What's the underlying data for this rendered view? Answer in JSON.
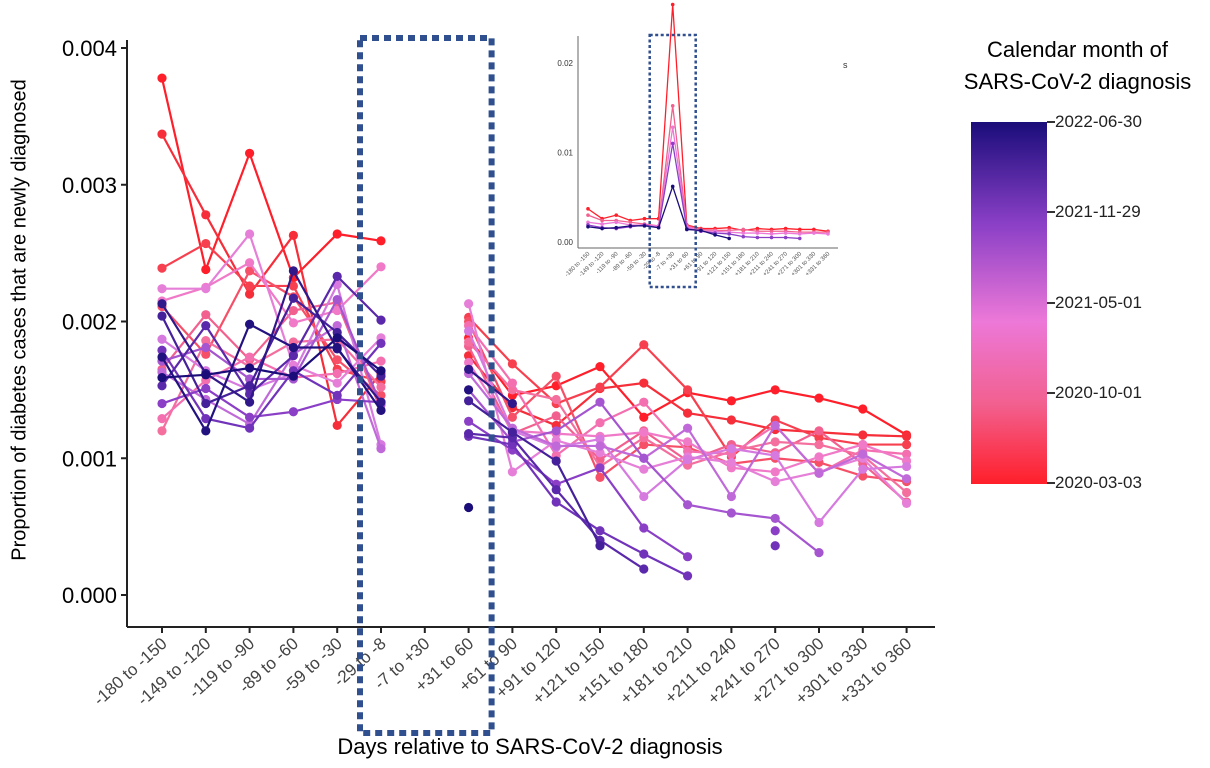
{
  "chart_data": {
    "type": "line",
    "title": "",
    "xlabel": "Days relative to SARS-CoV-2 diagnosis",
    "ylabel": "Proportion of diabetes cases that are newly diagnosed",
    "categories": [
      "-180 to -150",
      "-149 to -120",
      "-119 to -90",
      "-89 to -60",
      "-59 to -30",
      "-29 to -8",
      "-7 to +30",
      "+31 to 60",
      "+61 to 90",
      "+91 to 120",
      "+121 to 150",
      "+151 to 180",
      "+181 to 210",
      "+211 to 240",
      "+241 to 270",
      "+271 to 300",
      "+301 to 330",
      "+331 to 360"
    ],
    "ylim": [
      0,
      0.004
    ],
    "yticks": [
      "0.000",
      "0.001",
      "0.002",
      "0.003",
      "0.004"
    ],
    "highlighted_window": [
      "-29 to -8",
      "+31 to 60"
    ],
    "legend": {
      "title_line1": "Calendar month of",
      "title_line2": "SARS-CoV-2 diagnosis",
      "labels": [
        "2022-06-30",
        "2021-11-29",
        "2021-05-01",
        "2020-10-01",
        "2020-03-03"
      ],
      "colors": [
        "#1a0d7a",
        "#8a3fc6",
        "#ec78d8",
        "#f2608f",
        "#ff1f2a"
      ]
    },
    "series": [
      {
        "color": "#ff1f2a",
        "values": [
          0.00378,
          0.00238,
          0.00323,
          0.00232,
          0.00264,
          0.00259,
          null,
          0.00188,
          0.00146,
          0.00153,
          0.00167,
          0.0013,
          0.00148,
          0.00142,
          0.0015,
          0.00144,
          0.00136,
          0.00117
        ]
      },
      {
        "color": "#f52e3a",
        "values": [
          0.00337,
          0.00278,
          0.0022,
          0.00263,
          0.00124,
          0.00162,
          null,
          0.00175,
          0.00137,
          0.00124,
          0.00151,
          0.00155,
          0.00133,
          0.00128,
          0.00121,
          0.00119,
          0.00117,
          0.00116
        ]
      },
      {
        "color": "#f7404f",
        "values": [
          0.00239,
          0.00257,
          0.00226,
          0.00226,
          0.00165,
          0.00156,
          null,
          0.00203,
          0.00169,
          0.0014,
          0.00152,
          0.00183,
          0.0015,
          0.00101,
          0.00128,
          0.00115,
          0.0011,
          0.0011
        ]
      },
      {
        "color": "#f55068",
        "values": [
          0.00211,
          0.00176,
          0.00237,
          0.00218,
          0.00172,
          0.00146,
          null,
          0.002,
          0.0013,
          0.0016,
          0.00086,
          0.0011,
          0.00108,
          0.00096,
          0.001,
          0.00097,
          0.00087,
          0.00083
        ]
      },
      {
        "color": "#f2608f",
        "values": [
          0.00165,
          0.00205,
          0.00172,
          0.00208,
          0.00214,
          0.00135,
          null,
          0.00182,
          0.00118,
          0.00131,
          0.00099,
          0.0012,
          0.00098,
          0.0011,
          0.00104,
          0.0012,
          0.00096,
          0.00068
        ]
      },
      {
        "color": "#f46e9e",
        "values": [
          0.0012,
          0.00186,
          0.00167,
          0.00185,
          0.00187,
          0.00152,
          null,
          0.00185,
          0.0015,
          0.00143,
          0.00094,
          0.00115,
          0.00095,
          0.00105,
          0.00112,
          0.0011,
          0.00102,
          0.00075
        ]
      },
      {
        "color": "#f46fb0",
        "values": [
          0.00129,
          0.00157,
          0.00174,
          0.00159,
          0.00162,
          0.00171,
          null,
          0.00197,
          0.00155,
          0.00102,
          0.00126,
          0.00141,
          0.00105,
          0.00103,
          0.00124,
          0.00089,
          0.00106,
          0.00103
        ]
      },
      {
        "color": "#f07ac8",
        "values": [
          0.00215,
          0.00225,
          0.00243,
          0.00199,
          0.00208,
          0.0024,
          null,
          0.0017,
          0.0012,
          0.00118,
          0.00116,
          0.00119,
          0.00112,
          0.00093,
          0.0009,
          0.00101,
          0.0011,
          0.00098
        ]
      },
      {
        "color": "#e67fd8",
        "values": [
          0.00224,
          0.00224,
          0.00264,
          0.00168,
          0.00155,
          0.00188,
          null,
          0.00213,
          0.0009,
          0.00113,
          0.00104,
          0.00092,
          0.00101,
          0.00097,
          0.00083,
          0.0009,
          0.001,
          0.00067
        ]
      },
      {
        "color": "#d67ae0",
        "values": [
          0.00187,
          0.00164,
          0.0015,
          0.00162,
          0.00227,
          0.0011,
          null,
          0.00193,
          0.0012,
          0.00108,
          0.00114,
          0.00072,
          0.00099,
          0.00107,
          0.00102,
          0.00053,
          0.00092,
          0.00094
        ]
      },
      {
        "color": "#c06ad9",
        "values": [
          0.00163,
          0.00143,
          0.00125,
          0.00176,
          0.00197,
          0.00107,
          null,
          0.00162,
          0.00122,
          0.00109,
          0.00109,
          0.001,
          0.00122,
          0.00072,
          0.00124,
          0.00089,
          0.00103,
          0.00085
        ]
      },
      {
        "color": "#a455cf",
        "values": [
          0.00171,
          0.00181,
          0.00158,
          0.00158,
          0.00216,
          0.00139,
          null,
          0.0015,
          0.00112,
          0.0012,
          0.00141,
          0.001,
          0.00066,
          0.0006,
          0.00056,
          0.00031,
          null,
          null
        ]
      },
      {
        "color": "#8a3fc6",
        "values": [
          0.0014,
          0.00151,
          0.0013,
          0.00134,
          0.00143,
          0.00141,
          null,
          0.00127,
          0.00106,
          0.00081,
          0.00093,
          0.00049,
          0.00028,
          null,
          0.00047,
          null,
          null,
          null
        ]
      },
      {
        "color": "#7033ba",
        "values": [
          0.00179,
          0.00129,
          0.00122,
          0.00164,
          0.00146,
          0.00184,
          null,
          0.00116,
          0.0011,
          0.00068,
          0.00047,
          0.0003,
          0.00014,
          null,
          0.00036,
          null,
          null,
          null
        ]
      },
      {
        "color": "#5a28aa",
        "values": [
          0.00153,
          0.00197,
          0.00147,
          0.00175,
          0.00233,
          0.00201,
          null,
          0.00118,
          0.00115,
          0.00077,
          0.0004,
          0.00019,
          null,
          null,
          null,
          null,
          null,
          null
        ]
      },
      {
        "color": "#44209a",
        "values": [
          0.00204,
          0.0014,
          0.00153,
          0.00217,
          0.00192,
          0.0016,
          null,
          0.00142,
          0.00119,
          0.00098,
          0.00036,
          null,
          null,
          null,
          null,
          null,
          null,
          null
        ]
      },
      {
        "color": "#30188a",
        "values": [
          0.00213,
          0.00162,
          0.00141,
          0.00237,
          0.0018,
          0.00141,
          null,
          0.00165,
          0.0014,
          null,
          null,
          null,
          null,
          null,
          null,
          null,
          null,
          null
        ]
      },
      {
        "color": "#221280",
        "values": [
          0.00174,
          0.0012,
          0.00198,
          0.00181,
          0.00181,
          0.00135,
          null,
          0.0015,
          null,
          null,
          null,
          null,
          null,
          null,
          null,
          null,
          null,
          null
        ]
      },
      {
        "color": "#1a0d7a",
        "values": [
          0.00159,
          0.00161,
          0.00166,
          0.0016,
          0.00188,
          0.00164,
          null,
          0.00064,
          null,
          null,
          null,
          null,
          null,
          null,
          null,
          null,
          null,
          null
        ]
      }
    ],
    "inset": {
      "type": "line",
      "ylim": [
        0,
        0.027
      ],
      "yticks": [
        "0.00",
        "0.01",
        "0.02"
      ],
      "categories": [
        "-180 to -150",
        "-149 to -120",
        "-119 to -90",
        "-89 to -60",
        "-59 to -30",
        "-29 to -8",
        "-7 to +30",
        "+31 to 60",
        "+61 to 90",
        "+91 to 120",
        "+121 to 150",
        "+151 to 180",
        "+181 to 210",
        "+211 to 240",
        "+241 to 270",
        "+271 to 300",
        "+301 to 330",
        "+331 to 360"
      ],
      "peak_category": "-7 to +30",
      "marker_text": "s",
      "series": [
        {
          "color": "#ff1f2a",
          "values": [
            0.0037,
            0.0026,
            0.003,
            0.0024,
            0.0026,
            0.0026,
            0.0265,
            0.0019,
            0.0015,
            0.0015,
            0.0016,
            0.0013,
            0.0015,
            0.0014,
            0.0015,
            0.0014,
            0.0014,
            0.0012
          ]
        },
        {
          "color": "#f2608f",
          "values": [
            0.003,
            0.0024,
            0.0024,
            0.0022,
            0.002,
            0.0018,
            0.0152,
            0.0018,
            0.0014,
            0.0013,
            0.0013,
            0.0014,
            0.0012,
            0.0012,
            0.0012,
            0.0011,
            0.0011,
            0.0011
          ]
        },
        {
          "color": "#ec78d8",
          "values": [
            0.0022,
            0.002,
            0.0022,
            0.0019,
            0.0019,
            0.0018,
            0.0128,
            0.0017,
            0.0012,
            0.0012,
            0.0011,
            0.001,
            0.001,
            0.0009,
            0.001,
            0.0009,
            0.001,
            0.0009
          ]
        },
        {
          "color": "#8a3fc6",
          "values": [
            0.0019,
            0.0016,
            0.0015,
            0.0017,
            0.0019,
            0.0016,
            0.011,
            0.0015,
            0.0012,
            0.001,
            0.0009,
            0.0006,
            0.0005,
            0.0005,
            0.0005,
            0.0004,
            null,
            null
          ]
        },
        {
          "color": "#1a0d7a",
          "values": [
            0.0017,
            0.0015,
            0.0016,
            0.0018,
            0.0018,
            0.0016,
            0.0062,
            0.0014,
            0.0013,
            0.0008,
            0.0004,
            null,
            null,
            null,
            null,
            null,
            null,
            null
          ]
        }
      ]
    }
  }
}
